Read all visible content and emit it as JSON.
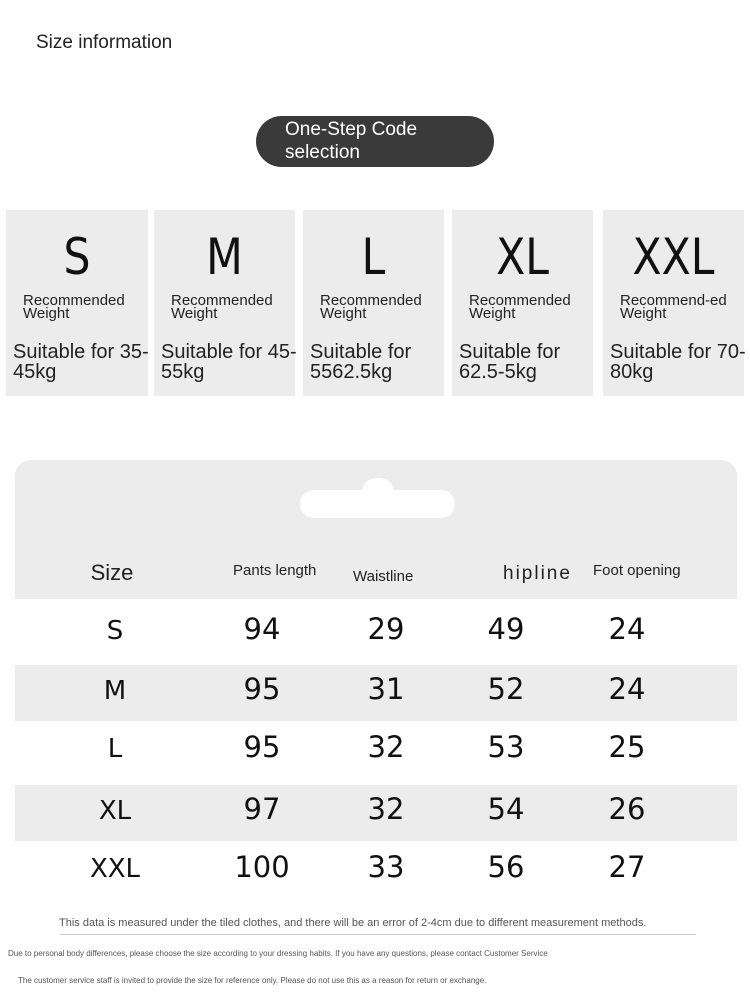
{
  "title": "Size information",
  "button_label": "One-Step Code selection",
  "cards": [
    {
      "size": "S",
      "label": "Recommended Weight",
      "range": "Suitable for 35-45kg"
    },
    {
      "size": "M",
      "label": "Recommended Weight",
      "range": "Suitable for 45-55kg"
    },
    {
      "size": "L",
      "label": "Recommended Weight",
      "range": "Suitable for 5562.5kg"
    },
    {
      "size": "XL",
      "label": "Recommended Weight",
      "range": "Suitable for 62.5-5kg"
    },
    {
      "size": "XXL",
      "label": "Recommend-ed Weight",
      "range": "Suitable for 70-80kg"
    }
  ],
  "table": {
    "headers": [
      "Size",
      "Pants length",
      "Waistline",
      "hipline",
      "Foot opening"
    ],
    "rows": [
      [
        "S",
        "94",
        "29",
        "49",
        "24"
      ],
      [
        "M",
        "95",
        "31",
        "52",
        "24"
      ],
      [
        "L",
        "95",
        "32",
        "53",
        "25"
      ],
      [
        "XL",
        "97",
        "32",
        "54",
        "26"
      ],
      [
        "XXL",
        "100",
        "33",
        "56",
        "27"
      ]
    ]
  },
  "notes": [
    "This data is measured under the tiled clothes, and there will be an error of 2-4cm due to different measurement methods.",
    "Due to personal body differences, please choose the size according to your dressing habits. If you have any questions, please contact Customer Service",
    "The customer service staff is invited to provide the size for reference only. Please do not use this as a reason for return or exchange."
  ]
}
